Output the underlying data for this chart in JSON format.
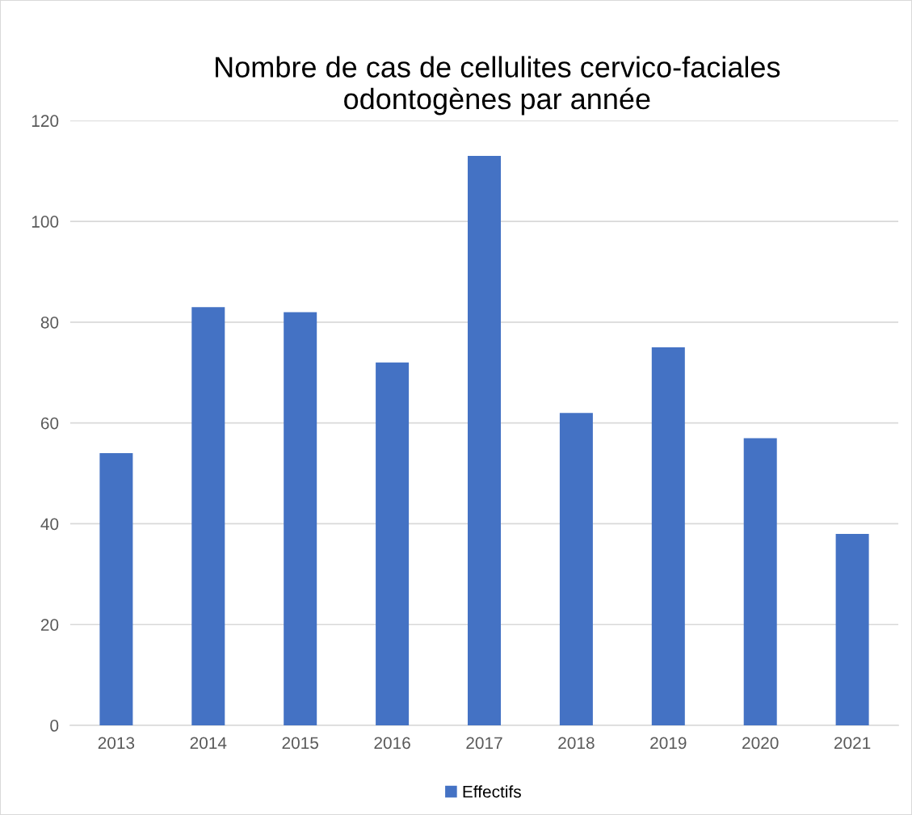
{
  "chart_data": {
    "type": "bar",
    "title": "Nombre de cas de cellulites cervico-faciales\nodontogènes par année",
    "categories": [
      "2013",
      "2014",
      "2015",
      "2016",
      "2017",
      "2018",
      "2019",
      "2020",
      "2021"
    ],
    "series": [
      {
        "name": "Effectifs",
        "color": "#4472c4",
        "values": [
          54,
          83,
          82,
          72,
          113,
          62,
          75,
          57,
          38
        ]
      }
    ],
    "ylim": [
      0,
      120
    ],
    "yticks": [
      0,
      20,
      40,
      60,
      80,
      100,
      120
    ],
    "grid": "y",
    "legend": "bottom"
  }
}
